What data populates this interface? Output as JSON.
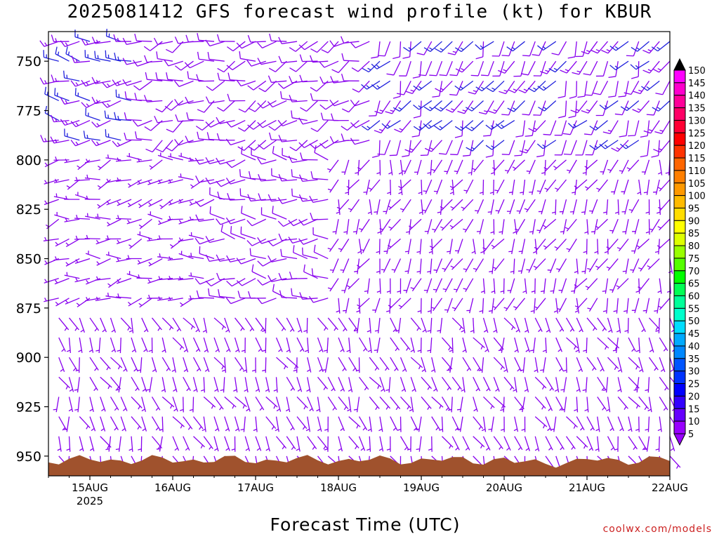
{
  "title": "2025081412 GFS forecast wind profile (kt) for KBUR",
  "xlabel": "Forecast Time (UTC)",
  "credit": "coolwx.com/models",
  "chart_data": {
    "type": "wind_barb_profile",
    "title": "2025081412 GFS forecast wind profile (kt) for KBUR",
    "xlabel": "Forecast Time (UTC)",
    "y_axis": {
      "label": "",
      "ticks": [
        750,
        775,
        800,
        825,
        850,
        875,
        900,
        925,
        950
      ],
      "range": [
        735,
        960
      ],
      "inverted": true
    },
    "x_axis": {
      "ticks": [
        {
          "label": "15AUG",
          "sublabel": "2025"
        },
        {
          "label": "16AUG",
          "sublabel": ""
        },
        {
          "label": "17AUG",
          "sublabel": ""
        },
        {
          "label": "18AUG",
          "sublabel": ""
        },
        {
          "label": "19AUG",
          "sublabel": ""
        },
        {
          "label": "20AUG",
          "sublabel": ""
        },
        {
          "label": "21AUG",
          "sublabel": ""
        },
        {
          "label": "22AUG",
          "sublabel": ""
        }
      ],
      "range_days": [
        -0.5,
        7.0
      ]
    },
    "colorbar": {
      "labels": [
        "150",
        "145",
        "140",
        "135",
        "130",
        "125",
        "120",
        "115",
        "110",
        "105",
        "100",
        "95",
        "90",
        "85",
        "80",
        "75",
        "70",
        "65",
        "60",
        "55",
        "50",
        "45",
        "40",
        "35",
        "30",
        "25",
        "20",
        "15",
        "10",
        "5"
      ],
      "colors": [
        "#000000",
        "#ff00ff",
        "#ff00cc",
        "#ff0099",
        "#ff0066",
        "#ff0033",
        "#ff0000",
        "#ff3300",
        "#ff6600",
        "#ff7f00",
        "#ff9900",
        "#ffbb00",
        "#ffdd00",
        "#ffff00",
        "#ddff00",
        "#99ff00",
        "#55ff00",
        "#00ff00",
        "#00ff55",
        "#00ff99",
        "#00ffcc",
        "#00ddff",
        "#00aaff",
        "#0088ff",
        "#0055ff",
        "#0033ff",
        "#0000ff",
        "#3300ff",
        "#6600ff",
        "#9900ff"
      ]
    },
    "terrain_color": "#a0522d",
    "barb_color_light": "#8800ee",
    "barb_color_strong": "#2222dd",
    "levels": [
      740,
      750,
      760,
      770,
      780,
      790,
      800,
      810,
      820,
      830,
      840,
      850,
      860,
      870,
      880,
      890,
      900,
      910,
      920,
      930,
      940,
      950
    ],
    "times": [
      -0.375,
      -0.25,
      -0.125,
      0,
      0.125,
      0.25,
      0.375,
      0.5,
      0.625,
      0.75,
      0.875,
      1,
      1.125,
      1.25,
      1.375,
      1.5,
      1.625,
      1.75,
      1.875,
      2,
      2.125,
      2.25,
      2.375,
      2.5,
      2.625,
      2.75,
      2.875,
      3,
      3.125,
      3.25,
      3.375,
      3.5,
      3.625,
      3.75,
      3.875,
      4,
      4.125,
      4.25,
      4.375,
      4.5,
      4.625,
      4.75,
      4.875,
      5,
      5.125,
      5.25,
      5.375,
      5.5,
      5.625,
      5.75,
      5.875,
      6,
      6.125,
      6.25,
      6.375,
      6.5,
      6.625,
      6.75,
      6.875,
      7
    ],
    "wind": {
      "description": "GFS forecast wind barbs: speed in kt and direction in degrees, by pressure level and forecast day",
      "regimes": [
        {
          "levels": [
            740,
            800
          ],
          "days": [
            -0.5,
            0.6
          ],
          "dir": 270,
          "spd": [
            15,
            20
          ]
        },
        {
          "levels": [
            740,
            800
          ],
          "days": [
            0.6,
            3.5
          ],
          "dir": 250,
          "spd": [
            10,
            15
          ]
        },
        {
          "levels": [
            740,
            800
          ],
          "days": [
            3.5,
            7.0
          ],
          "dir": 210,
          "spd": [
            10,
            20
          ]
        },
        {
          "levels": [
            800,
            880
          ],
          "days": [
            -0.5,
            1.5
          ],
          "dir": 260,
          "spd": [
            5,
            10
          ]
        },
        {
          "levels": [
            800,
            880
          ],
          "days": [
            1.5,
            3.0
          ],
          "dir": 270,
          "spd": [
            10,
            15
          ]
        },
        {
          "levels": [
            800,
            880
          ],
          "days": [
            3.0,
            7.0
          ],
          "dir": 200,
          "spd": [
            5,
            10
          ]
        },
        {
          "levels": [
            880,
            950
          ],
          "days": [
            -0.5,
            7.0
          ],
          "dir": 160,
          "spd": [
            5,
            10
          ]
        }
      ]
    }
  }
}
